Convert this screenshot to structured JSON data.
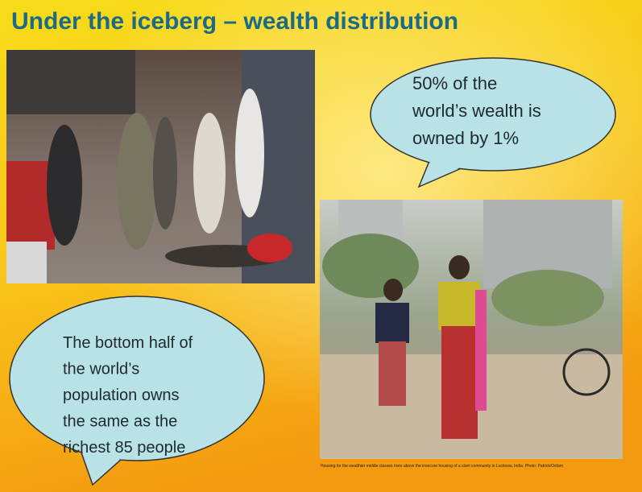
{
  "header": {
    "title": "Under the iceberg – wealth distribution"
  },
  "bubbles": [
    {
      "lines": [
        "50% of the",
        "world’s wealth is",
        "owned  by 1%"
      ]
    },
    {
      "lines": [
        "The bottom half of",
        "the world’s",
        "population owns",
        "the same as the",
        "richest 85 people"
      ]
    }
  ],
  "caption": "Housing for the wealthier middle classes rises above the insecure housing of a slum community in Lucknow, India. Photo: Patrick/Oxfam"
}
